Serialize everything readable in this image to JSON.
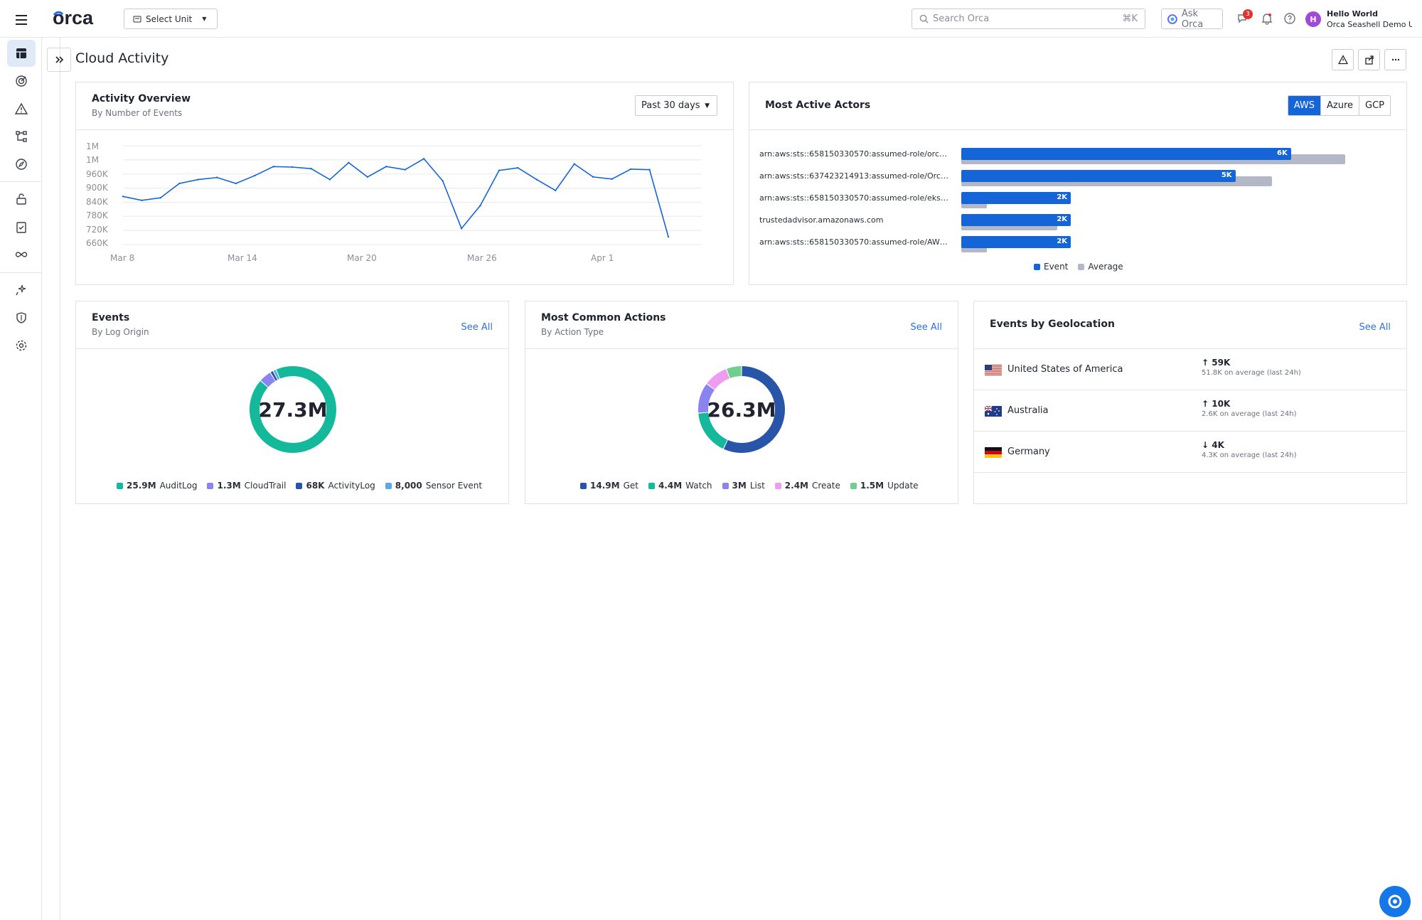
{
  "topbar": {
    "logo_text": "orca",
    "select_unit_label": "Select Unit",
    "search_placeholder": "Search Orca",
    "search_shortcut": "⌘K",
    "ask_orca_label": "Ask Orca",
    "notification_count": "3",
    "avatar_initial": "H",
    "user_greeting": "Hello World",
    "user_org": "Orca Seashell Demo US"
  },
  "page": {
    "title": "Cloud Activity"
  },
  "activity_overview": {
    "title": "Activity Overview",
    "subtitle": "By Number of Events",
    "range_label": "Past 30 days",
    "y_ticks": [
      "1M",
      "1M",
      "960K",
      "900K",
      "840K",
      "780K",
      "720K",
      "660K"
    ],
    "x_ticks": [
      "Mar 8",
      "Mar 14",
      "Mar 20",
      "Mar 26",
      "Apr 1"
    ]
  },
  "most_active_actors": {
    "title": "Most Active Actors",
    "clouds": [
      "AWS",
      "Azure",
      "GCP"
    ],
    "selected_cloud": "AWS",
    "legend_event": "Event",
    "legend_average": "Average",
    "actors": [
      {
        "name": "arn:aws:sts::658150330570:assumed-role/orca-...",
        "label": "6K",
        "event_frac": 0.611,
        "avg_frac": 0.712
      },
      {
        "name": "arn:aws:sts::637423214913:assumed-role/Orca...",
        "label": "5K",
        "event_frac": 0.508,
        "avg_frac": 0.576
      },
      {
        "name": "arn:aws:sts::658150330570:assumed-role/eks-c...",
        "label": "2K",
        "event_frac": 0.203,
        "avg_frac": 0.048
      },
      {
        "name": "trustedadvisor.amazonaws.com",
        "label": "2K",
        "event_frac": 0.203,
        "avg_frac": 0.178
      },
      {
        "name": "arn:aws:sts::658150330570:assumed-role/AWS...",
        "label": "2K",
        "event_frac": 0.203,
        "avg_frac": 0.048
      }
    ],
    "colors": {
      "event": "#1565d8",
      "average": "#b3b8c7"
    }
  },
  "events": {
    "title": "Events",
    "subtitle": "By Log Origin",
    "see_all": "See All",
    "total": "27.3M",
    "legend": [
      {
        "value": "25.9M",
        "label": "AuditLog",
        "color": "#14b89a"
      },
      {
        "value": "1.3M",
        "label": "CloudTrail",
        "color": "#8b83f0"
      },
      {
        "value": "68K",
        "label": "ActivityLog",
        "color": "#2855a8"
      },
      {
        "value": "8,000",
        "label": "Sensor Event",
        "color": "#5aa8e8"
      }
    ]
  },
  "common_actions": {
    "title": "Most Common Actions",
    "subtitle": "By Action Type",
    "see_all": "See All",
    "total": "26.3M",
    "legend": [
      {
        "value": "14.9M",
        "label": "Get",
        "color": "#2855a8"
      },
      {
        "value": "4.4M",
        "label": "Watch",
        "color": "#14b89a"
      },
      {
        "value": "3M",
        "label": "List",
        "color": "#8b83f0"
      },
      {
        "value": "2.4M",
        "label": "Create",
        "color": "#ef9cf0"
      },
      {
        "value": "1.5M",
        "label": "Update",
        "color": "#6fcf8f"
      }
    ]
  },
  "geolocation": {
    "title": "Events by Geolocation",
    "see_all": "See All",
    "rows": [
      {
        "country": "United States of America",
        "arrow": "↑",
        "value": "59K",
        "avg": "51.8K on average (last 24h)",
        "flag": "us-flag-icon"
      },
      {
        "country": "Australia",
        "arrow": "↑",
        "value": "10K",
        "avg": "2.6K on average (last 24h)",
        "flag": "au-flag-icon"
      },
      {
        "country": "Germany",
        "arrow": "↓",
        "value": "4K",
        "avg": "4.3K on average (last 24h)",
        "flag": "de-flag-icon"
      }
    ]
  },
  "chart_data": [
    {
      "type": "line",
      "title": "Activity Overview",
      "series": [
        {
          "values": [
            845000,
            830000,
            840000,
            895000,
            910000,
            918000,
            895000,
            925000,
            960000,
            958000,
            952000,
            910000,
            975000,
            920000,
            960000,
            948000,
            990000,
            905000,
            722000,
            810000,
            945000,
            955000,
            910000,
            868000,
            970000,
            920000,
            912000,
            950000,
            948000,
            690000
          ]
        }
      ],
      "x_labels": [
        "Mar 8",
        "Mar 14",
        "Mar 20",
        "Mar 26",
        "Apr 1"
      ],
      "color": "#1565d8"
    },
    {
      "type": "bar",
      "title": "Most Active Actors",
      "categories": [
        "arn:aws:sts::658150330570:assumed-role/orca-...",
        "arn:aws:sts::637423214913:assumed-role/Orca...",
        "arn:aws:sts::658150330570:assumed-role/eks-c...",
        "trustedadvisor.amazonaws.com",
        "arn:aws:sts::658150330570:assumed-role/AWS..."
      ],
      "series": [
        {
          "name": "Event",
          "values": [
            6000,
            5000,
            2000,
            2000,
            2000
          ]
        },
        {
          "name": "Average",
          "values": [
            7000,
            5700,
            470,
            1750,
            470
          ]
        }
      ]
    },
    {
      "type": "pie",
      "title": "Events",
      "categories": [
        "AuditLog",
        "CloudTrail",
        "ActivityLog",
        "Sensor Event"
      ],
      "values": [
        25900000,
        1300000,
        68000,
        8000
      ]
    },
    {
      "type": "pie",
      "title": "Most Common Actions",
      "categories": [
        "Get",
        "Watch",
        "List",
        "Create",
        "Update"
      ],
      "values": [
        14900000,
        4400000,
        3000000,
        2400000,
        1500000
      ]
    }
  ]
}
